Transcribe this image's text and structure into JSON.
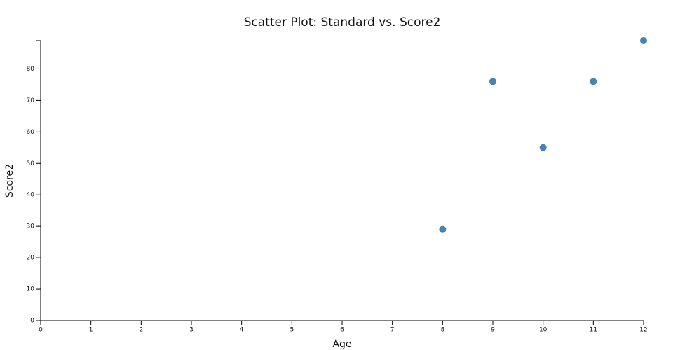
{
  "chart_data": {
    "type": "scatter",
    "title": "Scatter Plot: Standard vs. Score2",
    "x_label": "Age",
    "y_label": "Score2",
    "series": [
      {
        "name": "Score2",
        "color": "#4682b4",
        "x": [
          8,
          9,
          10,
          11,
          12
        ],
        "values": [
          29,
          76,
          55,
          76,
          89
        ]
      }
    ],
    "xlim": [
      0,
      12
    ],
    "xticks": [
      0,
      1,
      2,
      3,
      4,
      5,
      6,
      7,
      8,
      9,
      10,
      11,
      12
    ],
    "ylim": [
      0,
      89
    ],
    "yticks": [
      0,
      10,
      20,
      30,
      40,
      50,
      60,
      70,
      80
    ]
  }
}
